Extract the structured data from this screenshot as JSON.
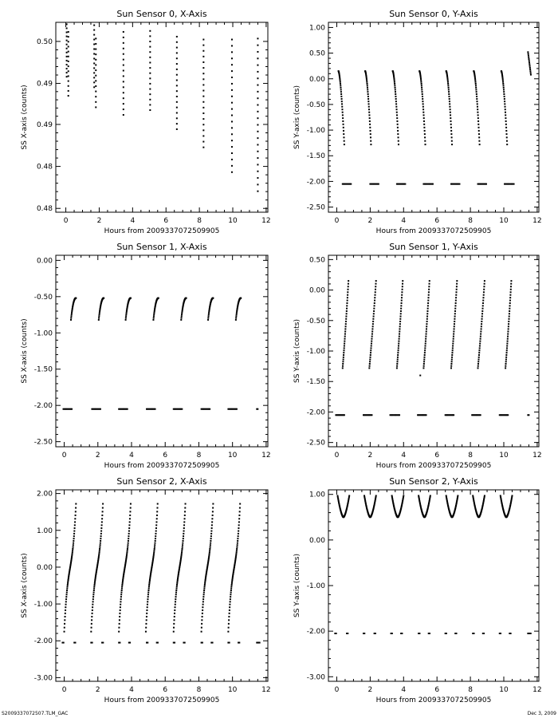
{
  "footer": {
    "left": "S2009337072507.TLM_GAC",
    "right": "Dec  3, 2009"
  },
  "chart_data": [
    {
      "type": "scatter",
      "title": "Sun Sensor 0, X-Axis",
      "xlabel": "Hours from 2009337072509905",
      "ylabel": "SS X-axis (counts)",
      "xlim": [
        -0.6,
        12.1
      ],
      "ylim": [
        0.4796,
        0.4995
      ],
      "xticks": [
        0,
        2,
        4,
        6,
        8,
        10,
        12
      ],
      "yticks": [
        0.48,
        0.4844,
        0.4888,
        0.4931,
        0.4975
      ],
      "yticklabels": [
        "0.48",
        "0.48",
        "0.49",
        "0.49",
        "0.50"
      ],
      "ytickfmt": "2",
      "segments": [
        {
          "kind": "v",
          "x": 0.05,
          "x2": 0.05,
          "y1": 0.4938,
          "y2": 0.4993,
          "n": 14
        },
        {
          "kind": "v",
          "x": 0.15,
          "x2": 0.15,
          "y1": 0.4918,
          "y2": 0.4985,
          "n": 14
        },
        {
          "kind": "v",
          "x": 1.7,
          "x2": 1.7,
          "y1": 0.4927,
          "y2": 0.4992,
          "n": 14
        },
        {
          "kind": "v",
          "x": 1.8,
          "x2": 1.8,
          "y1": 0.4906,
          "y2": 0.4978,
          "n": 14
        },
        {
          "kind": "v",
          "x": 3.45,
          "x2": 3.45,
          "y1": 0.4898,
          "y2": 0.4985,
          "n": 16
        },
        {
          "kind": "v",
          "x": 5.05,
          "x2": 5.05,
          "y1": 0.4903,
          "y2": 0.4986,
          "n": 16
        },
        {
          "kind": "v",
          "x": 6.65,
          "x2": 6.65,
          "y1": 0.4883,
          "y2": 0.498,
          "n": 18
        },
        {
          "kind": "v",
          "x": 8.25,
          "x2": 8.25,
          "y1": 0.4864,
          "y2": 0.4977,
          "n": 20
        },
        {
          "kind": "v",
          "x": 9.95,
          "x2": 9.95,
          "y1": 0.4838,
          "y2": 0.4977,
          "n": 22
        },
        {
          "kind": "v",
          "x": 11.5,
          "x2": 11.5,
          "y1": 0.4818,
          "y2": 0.4978,
          "n": 24
        }
      ]
    },
    {
      "type": "scatter",
      "title": "Sun Sensor 0, Y-Axis",
      "xlabel": "Hours from 2009337072509905",
      "ylabel": "SS Y-axis (counts)",
      "xlim": [
        -0.5,
        12.1
      ],
      "ylim": [
        -2.6,
        1.1
      ],
      "xticks": [
        0,
        2,
        4,
        6,
        8,
        10,
        12
      ],
      "yticks": [
        -2.5,
        -2.0,
        -1.5,
        -1.0,
        -0.5,
        0.0,
        0.5,
        1.0
      ],
      "ytickfmt": "2",
      "segments": [
        {
          "kind": "c",
          "x": 0.1,
          "x2": 0.45,
          "y1": 0.15,
          "y2": -1.28,
          "n": 34
        },
        {
          "kind": "c",
          "x": 1.7,
          "x2": 2.05,
          "y1": 0.15,
          "y2": -1.28,
          "n": 34
        },
        {
          "kind": "c",
          "x": 3.35,
          "x2": 3.7,
          "y1": 0.15,
          "y2": -1.28,
          "n": 34
        },
        {
          "kind": "c",
          "x": 4.95,
          "x2": 5.3,
          "y1": 0.15,
          "y2": -1.28,
          "n": 34
        },
        {
          "kind": "c",
          "x": 6.55,
          "x2": 6.9,
          "y1": 0.15,
          "y2": -1.28,
          "n": 34
        },
        {
          "kind": "c",
          "x": 8.2,
          "x2": 8.55,
          "y1": 0.15,
          "y2": -1.28,
          "n": 34
        },
        {
          "kind": "c",
          "x": 9.85,
          "x2": 10.2,
          "y1": 0.15,
          "y2": -1.28,
          "n": 34
        },
        {
          "kind": "s",
          "x": 11.45,
          "x2": 11.62,
          "y1": 0.52,
          "y2": 0.08,
          "n": 14
        },
        {
          "kind": "h",
          "x": 0.35,
          "x2": 0.85,
          "y1": -2.05,
          "y2": -2.05,
          "n": 10
        },
        {
          "kind": "h",
          "x": 2.0,
          "x2": 2.5,
          "y1": -2.05,
          "y2": -2.05,
          "n": 10
        },
        {
          "kind": "h",
          "x": 3.6,
          "x2": 4.1,
          "y1": -2.05,
          "y2": -2.05,
          "n": 10
        },
        {
          "kind": "h",
          "x": 5.2,
          "x2": 5.75,
          "y1": -2.05,
          "y2": -2.05,
          "n": 10
        },
        {
          "kind": "h",
          "x": 6.85,
          "x2": 7.35,
          "y1": -2.05,
          "y2": -2.05,
          "n": 10
        },
        {
          "kind": "h",
          "x": 8.45,
          "x2": 8.95,
          "y1": -2.05,
          "y2": -2.05,
          "n": 10
        },
        {
          "kind": "h",
          "x": 10.05,
          "x2": 10.6,
          "y1": -2.05,
          "y2": -2.05,
          "n": 10
        }
      ]
    },
    {
      "type": "scatter",
      "title": "Sun Sensor 1, X-Axis",
      "xlabel": "Hours from 2009337072509905",
      "ylabel": "SS X-axis (counts)",
      "xlim": [
        -0.5,
        12.1
      ],
      "ylim": [
        -2.57,
        0.07
      ],
      "xticks": [
        0,
        2,
        4,
        6,
        8,
        10,
        12
      ],
      "yticks": [
        -2.5,
        -2.0,
        -1.5,
        -1.0,
        -0.5,
        0.0
      ],
      "ytickfmt": "2",
      "segments": [
        {
          "kind": "a",
          "x": 0.4,
          "x2": 0.7,
          "y1": -0.82,
          "y2": -0.52,
          "n": 26
        },
        {
          "kind": "a",
          "x": 2.05,
          "x2": 2.35,
          "y1": -0.82,
          "y2": -0.52,
          "n": 26
        },
        {
          "kind": "a",
          "x": 3.65,
          "x2": 3.95,
          "y1": -0.82,
          "y2": -0.52,
          "n": 26
        },
        {
          "kind": "a",
          "x": 5.3,
          "x2": 5.6,
          "y1": -0.82,
          "y2": -0.52,
          "n": 26
        },
        {
          "kind": "a",
          "x": 6.95,
          "x2": 7.25,
          "y1": -0.82,
          "y2": -0.52,
          "n": 26
        },
        {
          "kind": "a",
          "x": 8.55,
          "x2": 8.85,
          "y1": -0.82,
          "y2": -0.52,
          "n": 26
        },
        {
          "kind": "a",
          "x": 10.2,
          "x2": 10.5,
          "y1": -0.82,
          "y2": -0.52,
          "n": 26
        },
        {
          "kind": "h",
          "x": -0.05,
          "x2": 0.45,
          "y1": -2.05,
          "y2": -2.05,
          "n": 10
        },
        {
          "kind": "h",
          "x": 1.65,
          "x2": 2.15,
          "y1": -2.05,
          "y2": -2.05,
          "n": 10
        },
        {
          "kind": "h",
          "x": 3.25,
          "x2": 3.75,
          "y1": -2.05,
          "y2": -2.05,
          "n": 10
        },
        {
          "kind": "h",
          "x": 4.9,
          "x2": 5.4,
          "y1": -2.05,
          "y2": -2.05,
          "n": 10
        },
        {
          "kind": "h",
          "x": 6.5,
          "x2": 7.0,
          "y1": -2.05,
          "y2": -2.05,
          "n": 10
        },
        {
          "kind": "h",
          "x": 8.15,
          "x2": 8.65,
          "y1": -2.05,
          "y2": -2.05,
          "n": 10
        },
        {
          "kind": "h",
          "x": 9.75,
          "x2": 10.25,
          "y1": -2.05,
          "y2": -2.05,
          "n": 10
        },
        {
          "kind": "h",
          "x": 11.45,
          "x2": 11.5,
          "y1": -2.05,
          "y2": -2.05,
          "n": 2
        }
      ]
    },
    {
      "type": "scatter",
      "title": "Sun Sensor 1, Y-Axis",
      "xlabel": "Hours from 2009337072509905",
      "ylabel": "SS Y-axis (counts)",
      "xlim": [
        -0.5,
        12.1
      ],
      "ylim": [
        -2.57,
        0.57
      ],
      "xticks": [
        0,
        2,
        4,
        6,
        8,
        10,
        12
      ],
      "yticks": [
        -2.5,
        -2.0,
        -1.5,
        -1.0,
        -0.5,
        0.0,
        0.5
      ],
      "ytickfmt": "2",
      "segments": [
        {
          "kind": "l",
          "x": 0.35,
          "x2": 0.7,
          "y1": -1.28,
          "y2": 0.15,
          "n": 36
        },
        {
          "kind": "l",
          "x": 1.95,
          "x2": 2.35,
          "y1": -1.28,
          "y2": 0.15,
          "n": 36
        },
        {
          "kind": "l",
          "x": 3.6,
          "x2": 3.95,
          "y1": -1.28,
          "y2": 0.15,
          "n": 36
        },
        {
          "kind": "l",
          "x": 5.2,
          "x2": 5.55,
          "y1": -1.28,
          "y2": 0.15,
          "n": 36
        },
        {
          "kind": "l",
          "x": 6.85,
          "x2": 7.2,
          "y1": -1.28,
          "y2": 0.15,
          "n": 36
        },
        {
          "kind": "l",
          "x": 8.45,
          "x2": 8.85,
          "y1": -1.28,
          "y2": 0.15,
          "n": 36
        },
        {
          "kind": "l",
          "x": 10.1,
          "x2": 10.45,
          "y1": -1.28,
          "y2": 0.15,
          "n": 36
        },
        {
          "kind": "h",
          "x": 5.0,
          "x2": 5.0,
          "y1": -1.4,
          "y2": -1.4,
          "n": 1
        },
        {
          "kind": "h",
          "x": -0.05,
          "x2": 0.45,
          "y1": -2.05,
          "y2": -2.05,
          "n": 10
        },
        {
          "kind": "h",
          "x": 1.6,
          "x2": 2.1,
          "y1": -2.05,
          "y2": -2.05,
          "n": 10
        },
        {
          "kind": "h",
          "x": 3.2,
          "x2": 3.75,
          "y1": -2.05,
          "y2": -2.05,
          "n": 10
        },
        {
          "kind": "h",
          "x": 4.85,
          "x2": 5.35,
          "y1": -2.05,
          "y2": -2.05,
          "n": 10
        },
        {
          "kind": "h",
          "x": 6.5,
          "x2": 7.0,
          "y1": -2.05,
          "y2": -2.05,
          "n": 10
        },
        {
          "kind": "h",
          "x": 8.1,
          "x2": 8.6,
          "y1": -2.05,
          "y2": -2.05,
          "n": 10
        },
        {
          "kind": "h",
          "x": 9.75,
          "x2": 10.25,
          "y1": -2.05,
          "y2": -2.05,
          "n": 10
        },
        {
          "kind": "h",
          "x": 11.45,
          "x2": 11.5,
          "y1": -2.05,
          "y2": -2.05,
          "n": 2
        }
      ]
    },
    {
      "type": "scatter",
      "title": "Sun Sensor 2, X-Axis",
      "xlabel": "Hours from 2009337072509905",
      "ylabel": "SS X-axis (counts)",
      "xlim": [
        -0.5,
        12.1
      ],
      "ylim": [
        -3.1,
        2.1
      ],
      "xticks": [
        0,
        2,
        4,
        6,
        8,
        10,
        12
      ],
      "yticks": [
        -3.0,
        -2.0,
        -1.0,
        0.0,
        1.0,
        2.0
      ],
      "ytickfmt": "2",
      "segments": [
        {
          "kind": "sg",
          "x": 0.0,
          "x2": 0.7,
          "y1": -1.75,
          "y2": 1.72,
          "n": 60
        },
        {
          "kind": "sg",
          "x": 1.6,
          "x2": 2.3,
          "y1": -1.75,
          "y2": 1.72,
          "n": 60
        },
        {
          "kind": "sg",
          "x": 3.25,
          "x2": 3.95,
          "y1": -1.75,
          "y2": 1.72,
          "n": 60
        },
        {
          "kind": "sg",
          "x": 4.85,
          "x2": 5.55,
          "y1": -1.75,
          "y2": 1.72,
          "n": 60
        },
        {
          "kind": "sg",
          "x": 6.5,
          "x2": 7.2,
          "y1": -1.75,
          "y2": 1.72,
          "n": 60
        },
        {
          "kind": "sg",
          "x": 8.15,
          "x2": 8.85,
          "y1": -1.75,
          "y2": 1.72,
          "n": 60
        },
        {
          "kind": "sg",
          "x": 9.75,
          "x2": 10.45,
          "y1": -1.75,
          "y2": 1.72,
          "n": 60
        },
        {
          "kind": "p",
          "pts": [
            -0.1,
            0.6,
            1.6,
            2.25,
            3.25,
            3.85,
            4.9,
            5.5,
            6.5,
            7.1,
            8.15,
            8.75,
            9.75,
            10.35,
            11.45,
            11.55
          ],
          "y1": -2.05,
          "y2": -2.05,
          "x": 0,
          "x2": 0,
          "n": 0
        }
      ]
    },
    {
      "type": "scatter",
      "title": "Sun Sensor 2, Y-Axis",
      "xlabel": "Hours from 2009337072509905",
      "ylabel": "SS Y-axis (counts)",
      "xlim": [
        -0.5,
        12.1
      ],
      "ylim": [
        -3.1,
        1.1
      ],
      "xticks": [
        0,
        2,
        4,
        6,
        8,
        10,
        12
      ],
      "yticks": [
        -3.0,
        -2.0,
        -1.0,
        0.0,
        1.0
      ],
      "ytickfmt": "2",
      "segments": [
        {
          "kind": "u",
          "x": 0.05,
          "x2": 0.75,
          "y1": 0.5,
          "y2": 0.97,
          "n": 50
        },
        {
          "kind": "u",
          "x": 1.65,
          "x2": 2.35,
          "y1": 0.5,
          "y2": 0.97,
          "n": 50
        },
        {
          "kind": "u",
          "x": 3.3,
          "x2": 4.0,
          "y1": 0.5,
          "y2": 0.97,
          "n": 50
        },
        {
          "kind": "u",
          "x": 4.9,
          "x2": 5.6,
          "y1": 0.5,
          "y2": 0.97,
          "n": 50
        },
        {
          "kind": "u",
          "x": 6.55,
          "x2": 7.25,
          "y1": 0.5,
          "y2": 0.97,
          "n": 50
        },
        {
          "kind": "u",
          "x": 8.15,
          "x2": 8.85,
          "y1": 0.5,
          "y2": 0.97,
          "n": 50
        },
        {
          "kind": "u",
          "x": 9.8,
          "x2": 10.5,
          "y1": 0.5,
          "y2": 0.97,
          "n": 50
        },
        {
          "kind": "p",
          "pts": [
            -0.1,
            0.6,
            1.6,
            2.25,
            3.25,
            3.85,
            4.9,
            5.5,
            6.5,
            7.1,
            8.15,
            8.75,
            9.75,
            10.35,
            11.45,
            11.55
          ],
          "y1": -2.05,
          "y2": -2.05,
          "x": 0,
          "x2": 0,
          "n": 0
        }
      ]
    }
  ]
}
